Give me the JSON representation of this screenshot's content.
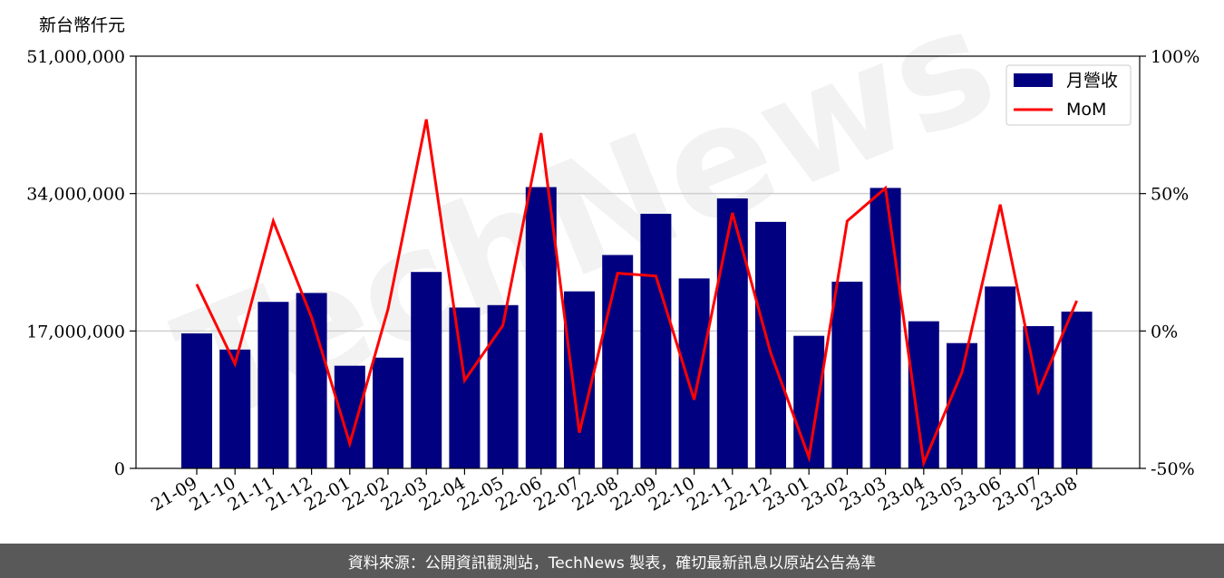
{
  "chart_data": {
    "type": "bar+line",
    "unit_label": "新台幣仟元",
    "categories": [
      "21-09",
      "21-10",
      "21-11",
      "21-12",
      "22-01",
      "22-02",
      "22-03",
      "22-04",
      "22-05",
      "22-06",
      "22-07",
      "22-08",
      "22-09",
      "22-10",
      "22-11",
      "22-12",
      "23-01",
      "23-02",
      "23-03",
      "23-04",
      "23-05",
      "23-06",
      "23-07",
      "23-08"
    ],
    "series": [
      {
        "name": "月營收",
        "type": "bar",
        "axis": "left",
        "color": "#000080",
        "values": [
          16700000,
          14700000,
          20600000,
          21700000,
          12700000,
          13700000,
          24300000,
          19900000,
          20200000,
          34800000,
          21900000,
          26400000,
          31500000,
          23500000,
          33400000,
          30500000,
          16400000,
          23100000,
          34700000,
          18200000,
          15500000,
          22500000,
          17600000,
          19400000
        ]
      },
      {
        "name": "MoM",
        "type": "line",
        "axis": "right",
        "color": "#ff0000",
        "values": [
          17,
          -12,
          40,
          5,
          -41,
          8,
          77,
          -18,
          2,
          72,
          -37,
          21,
          20,
          -25,
          43,
          -8,
          -46,
          40,
          52,
          -48,
          -15,
          46,
          -22,
          11
        ]
      }
    ],
    "y_left": {
      "lim": [
        0,
        51000000
      ],
      "ticks": [
        0,
        17000000,
        34000000,
        51000000
      ],
      "tick_labels": [
        "0",
        "17,000,000",
        "34,000,000",
        "51,000,000"
      ]
    },
    "y_right": {
      "lim": [
        -50,
        100
      ],
      "ticks": [
        -50,
        0,
        50,
        100
      ],
      "tick_labels": [
        "-50%",
        "0%",
        "50%",
        "100%"
      ]
    },
    "grid": "horizontal",
    "legend_position": "upper-right",
    "watermark": "TechNews"
  },
  "footer": {
    "text": "資料來源：公開資訊觀測站，TechNews 製表，確切最新訊息以原站公告為準"
  }
}
